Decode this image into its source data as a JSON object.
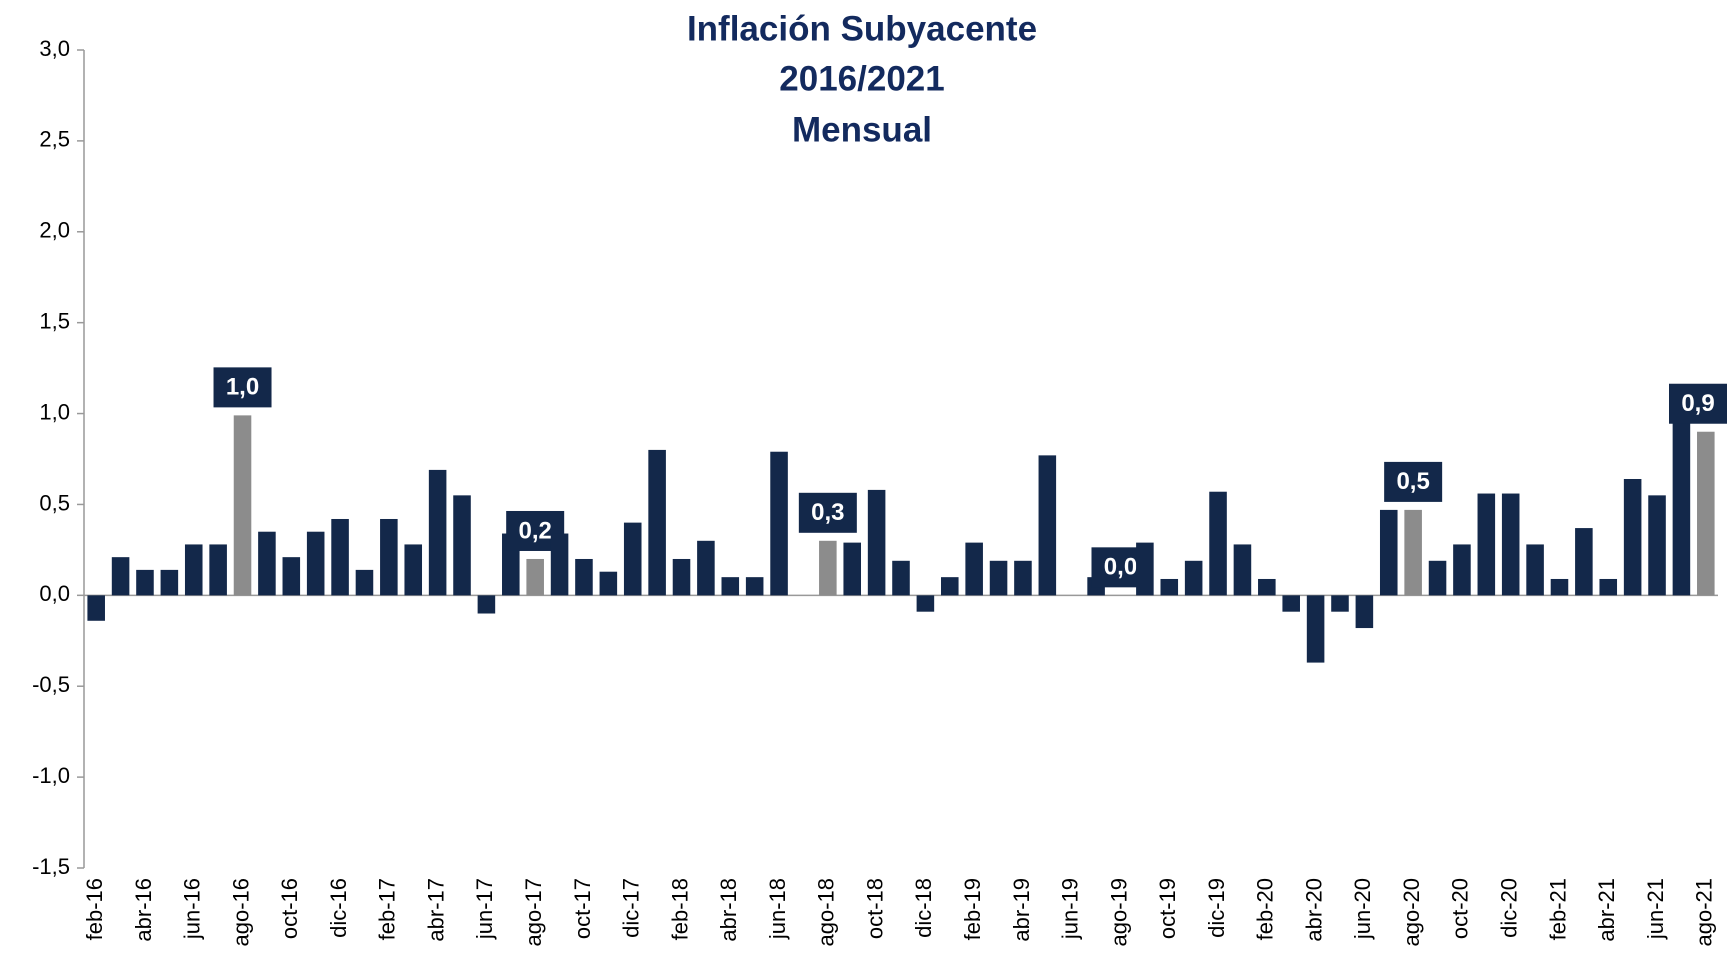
{
  "chart_data": {
    "type": "bar",
    "title": [
      "Inflación Subyacente",
      "2016/2021",
      "Mensual"
    ],
    "categories": [
      "feb-16",
      null,
      "abr-16",
      null,
      "jun-16",
      null,
      "ago-16",
      null,
      "oct-16",
      null,
      "dic-16",
      null,
      "feb-17",
      null,
      "abr-17",
      null,
      "jun-17",
      null,
      "ago-17",
      null,
      "oct-17",
      null,
      "dic-17",
      null,
      "feb-18",
      null,
      "abr-18",
      null,
      "jun-18",
      null,
      "ago-18",
      null,
      "oct-18",
      null,
      "dic-18",
      null,
      "feb-19",
      null,
      "abr-19",
      null,
      "jun-19",
      null,
      "ago-19",
      null,
      "oct-19",
      null,
      "dic-19",
      null,
      "feb-20",
      null,
      "abr-20",
      null,
      "jun-20",
      null,
      "ago-20",
      null,
      "oct-20",
      null,
      "dic-20",
      null,
      "feb-21",
      null,
      "abr-21",
      null,
      "jun-21",
      null,
      "ago-21"
    ],
    "values": [
      -0.14,
      0.21,
      0.14,
      0.14,
      0.28,
      0.28,
      0.99,
      0.35,
      0.21,
      0.35,
      0.42,
      0.14,
      0.42,
      0.28,
      0.69,
      0.55,
      -0.1,
      0.34,
      0.2,
      0.34,
      0.2,
      0.13,
      0.4,
      0.8,
      0.2,
      0.3,
      0.1,
      0.1,
      0.79,
      0,
      0.3,
      0.29,
      0.58,
      0.19,
      -0.09,
      0.1,
      0.29,
      0.19,
      0.19,
      0.77,
      0,
      0.1,
      0.0,
      0.29,
      0.09,
      0.19,
      0.57,
      0.28,
      0.09,
      -0.09,
      -0.37,
      -0.09,
      -0.18,
      0.47,
      0.47,
      0.19,
      0.28,
      0.56,
      0.56,
      0.28,
      0.09,
      0.37,
      0.09,
      0.64,
      0.55,
      1.08,
      0.9
    ],
    "value_labels": [
      null,
      null,
      null,
      null,
      null,
      null,
      "1,0",
      null,
      null,
      null,
      null,
      null,
      null,
      null,
      null,
      null,
      null,
      null,
      "0,2",
      null,
      null,
      null,
      null,
      null,
      null,
      null,
      null,
      null,
      null,
      null,
      "0,3",
      null,
      null,
      null,
      null,
      null,
      null,
      null,
      null,
      null,
      null,
      null,
      "0,0",
      null,
      null,
      null,
      null,
      null,
      null,
      null,
      null,
      null,
      null,
      null,
      "0,5",
      null,
      null,
      null,
      null,
      null,
      null,
      null,
      null,
      null,
      null,
      null,
      "0,9"
    ],
    "color": "#13284a",
    "highlight_color": "#8c8c8c",
    "ylim": [
      -1.5,
      3.0
    ],
    "yticks": [
      {
        "value": -1.5,
        "label": "-1,5"
      },
      {
        "value": -1.0,
        "label": "-1,0"
      },
      {
        "value": -0.5,
        "label": "-0,5"
      },
      {
        "value": 0.0,
        "label": "0,0"
      },
      {
        "value": 0.5,
        "label": "0,5"
      },
      {
        "value": 1.0,
        "label": "1,0"
      },
      {
        "value": 1.5,
        "label": "1,5"
      },
      {
        "value": 2.0,
        "label": "2,0"
      },
      {
        "value": 2.5,
        "label": "2,5"
      },
      {
        "value": 3.0,
        "label": "3,0"
      }
    ],
    "grid": false
  }
}
